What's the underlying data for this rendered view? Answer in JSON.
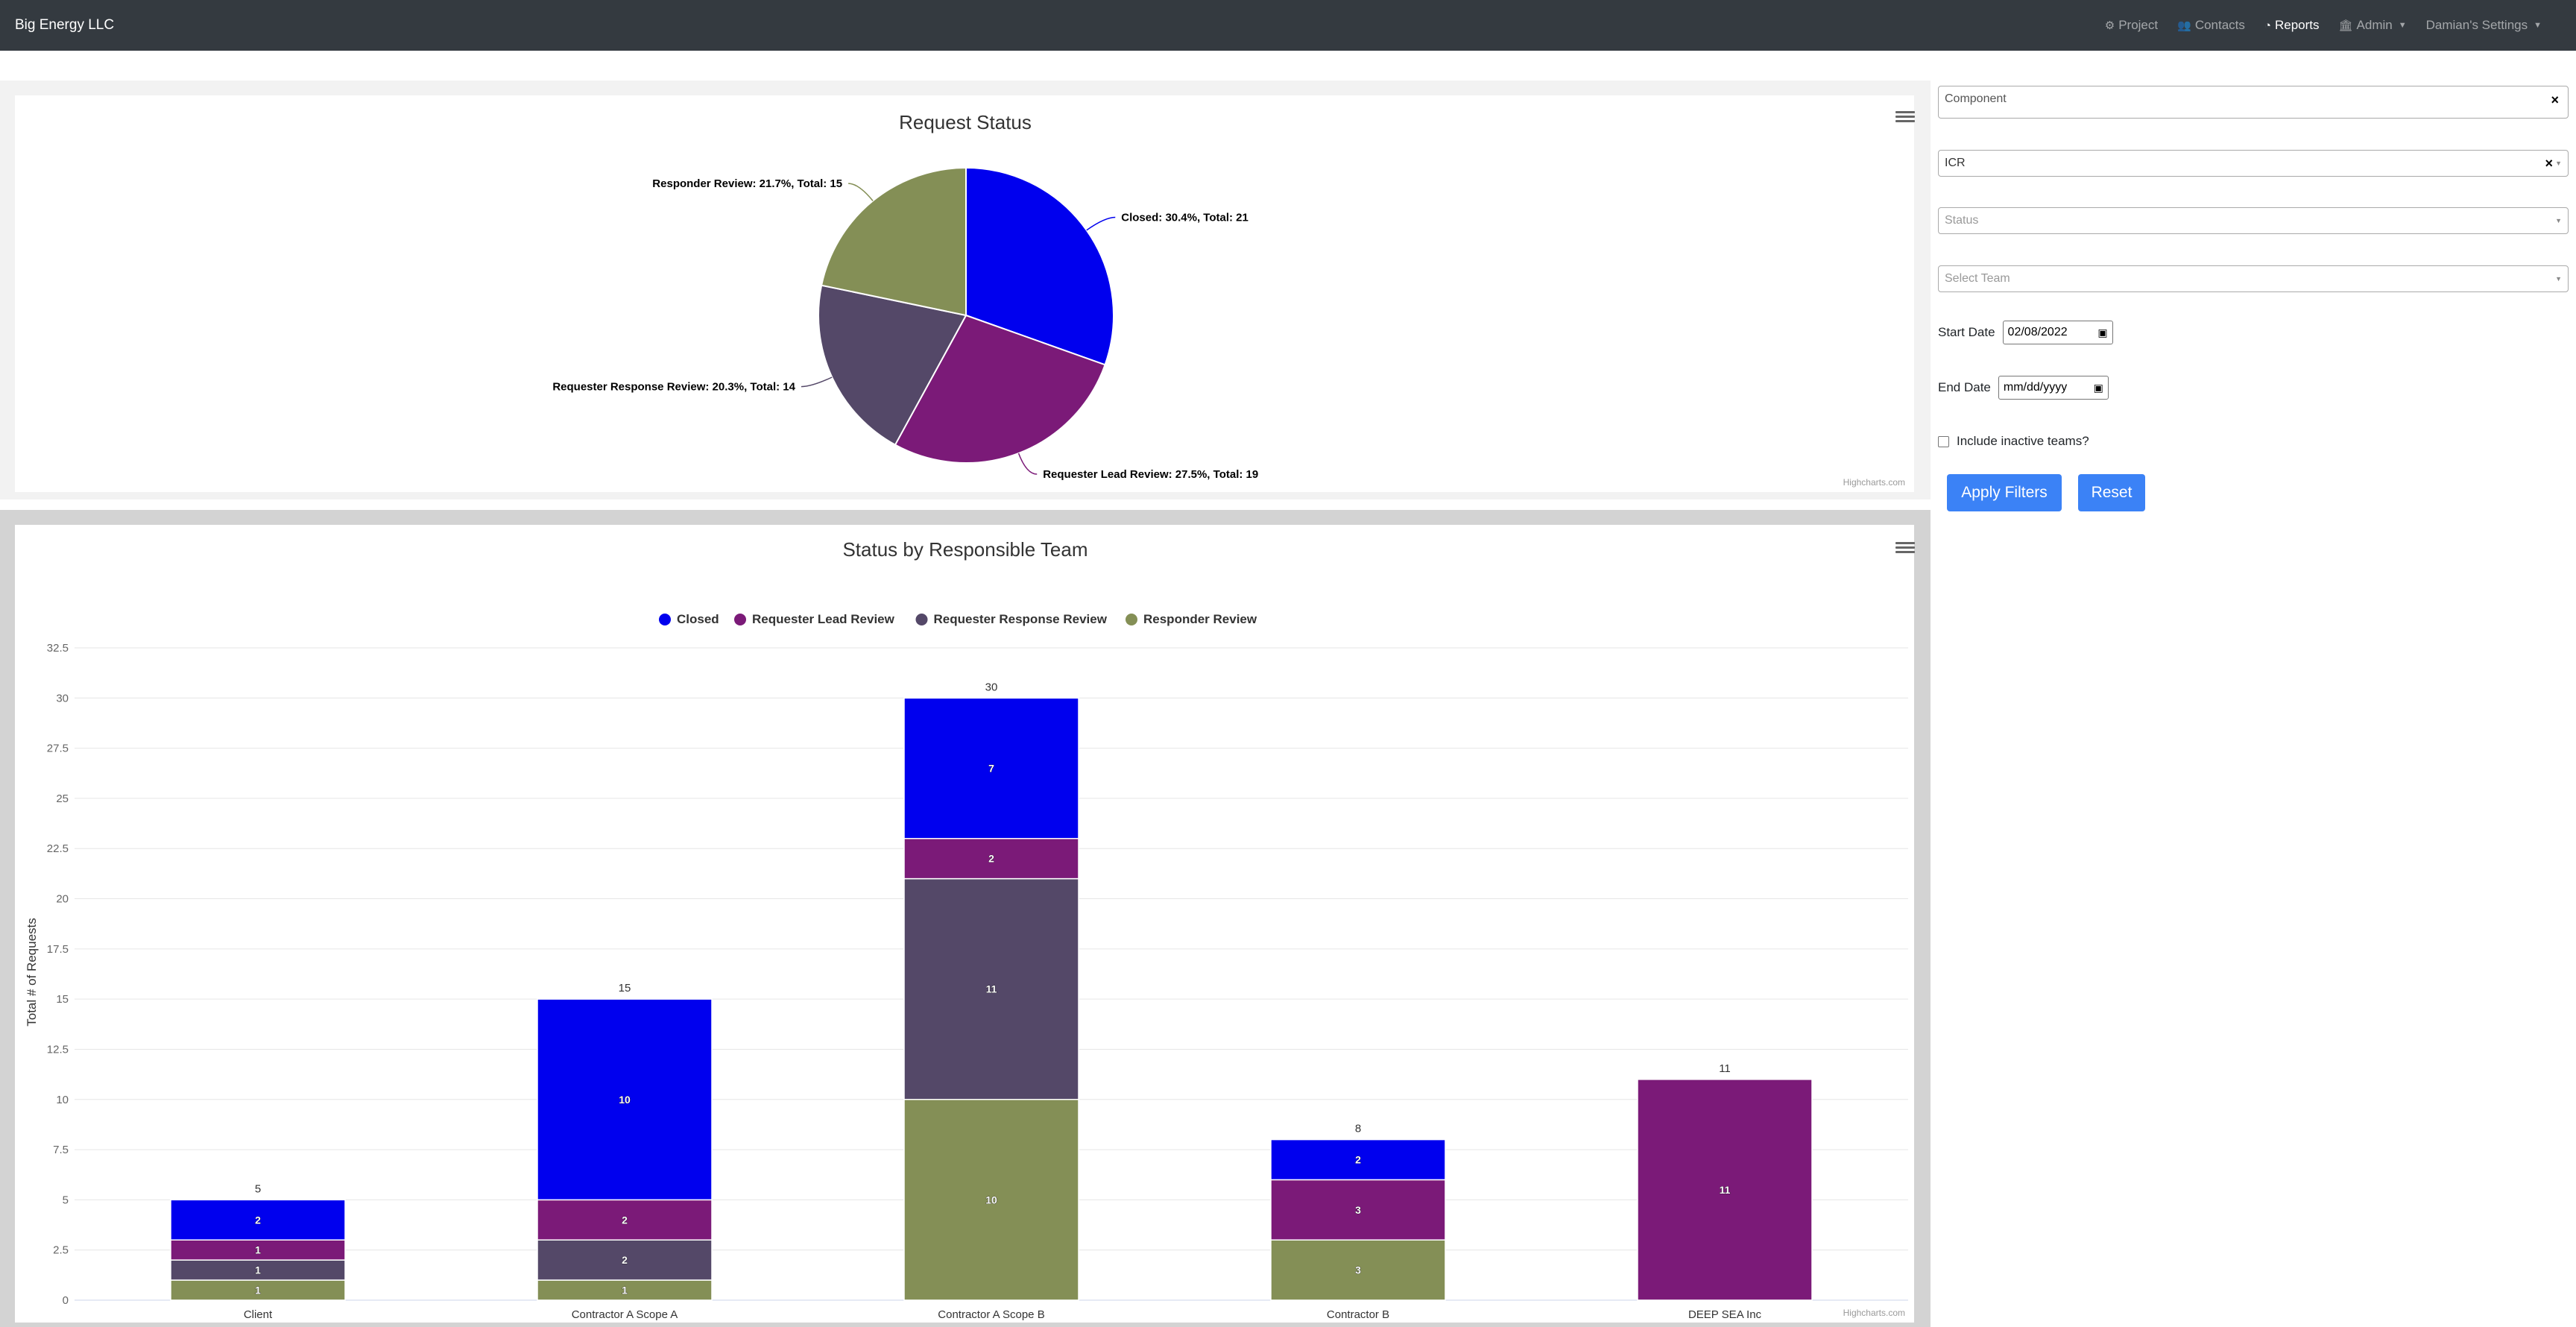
{
  "navbar": {
    "brand": "Big Energy LLC",
    "links": [
      {
        "label": "Project",
        "icon": "gear-icon",
        "active": false
      },
      {
        "label": "Contacts",
        "icon": "users-icon",
        "active": false
      },
      {
        "label": "Reports",
        "icon": "pie-chart-icon",
        "active": true
      },
      {
        "label": "Admin",
        "icon": "building-icon",
        "active": false
      },
      {
        "label": "Damian's Settings",
        "icon": "",
        "active": false
      }
    ]
  },
  "pie_chart": {
    "title": "Request Status",
    "credits": "Highcharts.com",
    "labels": [
      "Closed: 30.4%, Total: 21",
      "Requester Lead Review: 27.5%, Total: 19",
      "Requester Response Review: 20.3%, Total: 14",
      "Responder Review: 21.7%, Total: 15"
    ]
  },
  "bar_chart": {
    "title": "Status by Responsible Team",
    "ylabel": "Total # of Requests",
    "credits": "Highcharts.com"
  },
  "chart_data": [
    {
      "type": "pie",
      "title": "Request Status",
      "categories": [
        "Closed",
        "Requester Lead Review",
        "Requester Response Review",
        "Responder Review"
      ],
      "values": [
        21,
        19,
        14,
        15
      ],
      "percentages": [
        30.4,
        27.5,
        20.3,
        21.7
      ],
      "colors": [
        "#0000ee",
        "#7b1a78",
        "#544868",
        "#848f56"
      ]
    },
    {
      "type": "bar",
      "stacked": true,
      "title": "Status by Responsible Team",
      "xlabel": "",
      "ylabel": "Total # of Requests",
      "categories": [
        "Client",
        "Contractor A Scope A",
        "Contractor A Scope B",
        "Contractor B",
        "DEEP SEA Inc"
      ],
      "series": [
        {
          "name": "Closed",
          "color": "#0000ee",
          "values": [
            2,
            10,
            7,
            2,
            0
          ]
        },
        {
          "name": "Requester Lead Review",
          "color": "#7b1a78",
          "values": [
            1,
            2,
            2,
            3,
            11
          ]
        },
        {
          "name": "Requester Response Review",
          "color": "#544868",
          "values": [
            1,
            2,
            11,
            0,
            0
          ]
        },
        {
          "name": "Responder Review",
          "color": "#848f56",
          "values": [
            1,
            1,
            10,
            3,
            0
          ]
        }
      ],
      "totals": [
        5,
        15,
        30,
        8,
        11
      ],
      "ylim": [
        0,
        32.5
      ],
      "yticks": [
        0,
        2.5,
        5,
        7.5,
        10,
        12.5,
        15,
        17.5,
        20,
        22.5,
        25,
        27.5,
        30,
        32.5
      ],
      "legend": "top-center",
      "grid": true
    }
  ],
  "filters": {
    "component_placeholder": "Component",
    "type_value": "ICR",
    "status_placeholder": "Status",
    "team_placeholder": "Select Team",
    "start_date_label": "Start Date",
    "start_date_value": "02/08/2022",
    "end_date_label": "End Date",
    "end_date_value": "mm/dd/yyyy",
    "inactive_label": "Include inactive teams?",
    "apply_label": "Apply Filters",
    "reset_label": "Reset",
    "clear_symbol": "×"
  }
}
